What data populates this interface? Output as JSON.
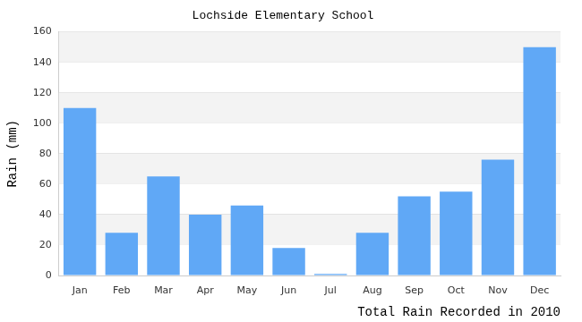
{
  "chart_data": {
    "type": "bar",
    "title": "Lochside Elementary School",
    "y_label": "Rain (mm)",
    "x_label": "Total Rain Recorded in 2010",
    "categories": [
      "Jan",
      "Feb",
      "Mar",
      "Apr",
      "May",
      "Jun",
      "Jul",
      "Aug",
      "Sep",
      "Oct",
      "Nov",
      "Dec"
    ],
    "values": [
      110,
      28,
      65,
      40,
      46,
      18,
      1,
      28,
      52,
      55,
      76,
      150
    ],
    "color": "#60a8f6",
    "ylim": [
      0,
      160
    ],
    "yticks": [
      0,
      20,
      40,
      60,
      80,
      100,
      120,
      140,
      160
    ],
    "grid": true
  }
}
